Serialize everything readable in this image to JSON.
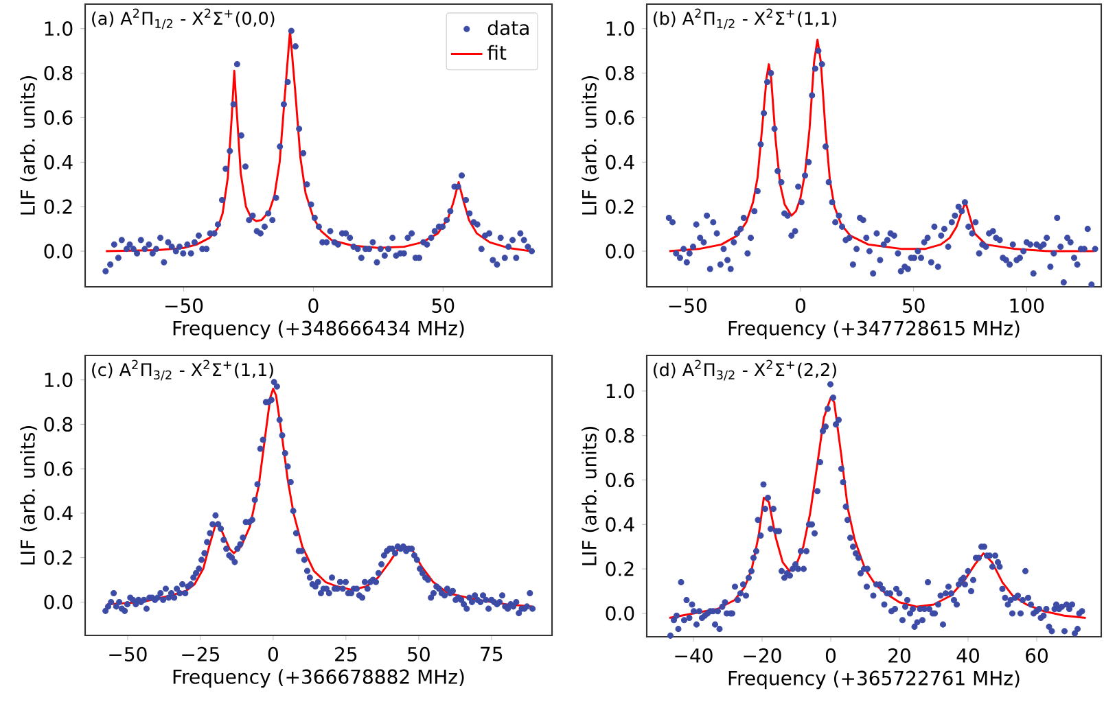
{
  "chart_data": [
    {
      "type": "scatter",
      "title": "(a) A$^{2}$Π$_{1/2}$ - X$^{2}$Σ$^{+}$(0,0)",
      "xlabel": "Frequency (+348666434 MHz)",
      "ylabel": "LIF (arb. units)",
      "xlim": [
        -88,
        92
      ],
      "ylim": [
        -0.16,
        1.11
      ],
      "xticks": [
        {
          "value": -50,
          "label": "−50"
        },
        0,
        50
      ],
      "yticks": [
        {
          "value": 0,
          "label": "0.0"
        },
        {
          "value": 0.2,
          "label": "0.2"
        },
        {
          "value": 0.4,
          "label": "0.4"
        },
        {
          "value": 0.6,
          "label": "0.6"
        },
        {
          "value": 0.8,
          "label": "0.8"
        },
        {
          "value": 1,
          "label": "1.0"
        }
      ],
      "legend": "top right",
      "series": [
        {
          "name": "data",
          "type": "scatter",
          "marker": "circle",
          "color": "#3c4ba5",
          "x": [
            -80.1,
            -78.3,
            -76.8,
            -75.2,
            -73.9,
            -72,
            -70.8,
            -69.4,
            -68,
            -66.5,
            -65,
            -63.4,
            -62,
            -60.6,
            -59,
            -57.6,
            -56,
            -54.6,
            -53,
            -51.6,
            -50.2,
            -48.6,
            -47.2,
            -45.8,
            -44.2,
            -42.8,
            -41.2,
            -39.8,
            -38.2,
            -36.8,
            -35.2,
            -33.8,
            -32.2,
            -30.8,
            -29.4,
            -27.8,
            -26.2,
            -24.8,
            -23.4,
            -21.8,
            -20.4,
            -18.8,
            -17.4,
            -15.8,
            -14.4,
            -12.9,
            -11.4,
            -9.9,
            -8.5,
            -6.9,
            -5.5,
            -3.9,
            -2.5,
            -0.9,
            0.5,
            2.1,
            3.5,
            5.1,
            6.5,
            8.1,
            9.5,
            11.1,
            12.5,
            14.1,
            15.5,
            17.1,
            18.5,
            20.1,
            21.5,
            22.9,
            24.5,
            25.9,
            27.5,
            28.9,
            30.5,
            31.9,
            33.5,
            34.9,
            36.4,
            37.9,
            39.4,
            40.8,
            42.4,
            43.8,
            45.4,
            46.8,
            48.4,
            49.8,
            51.4,
            52.8,
            54.4,
            55.8,
            57.2,
            58.8,
            60.2,
            61.8,
            63.2,
            64.8,
            66.2,
            67.8,
            69.2,
            70.8,
            72.2,
            73.8,
            75.2,
            76.8,
            78.2,
            79.8,
            81.2,
            82.7,
            84.2
          ],
          "values": [
            -0.09,
            -0.06,
            0.03,
            -0.03,
            0.05,
            0.01,
            0.03,
            0.01,
            -0.01,
            0.05,
            0.01,
            0.03,
            -0.01,
            0.01,
            0.06,
            -0.05,
            0.04,
            0.02,
            0.0,
            0.02,
            -0.01,
            0.03,
            -0.01,
            0.04,
            0.07,
            0.01,
            0.01,
            0.08,
            0.08,
            0.12,
            0.23,
            0.37,
            0.45,
            0.66,
            0.84,
            0.52,
            0.38,
            0.14,
            0.16,
            0.09,
            0.08,
            0.11,
            0.17,
            0.14,
            0.24,
            0.47,
            0.66,
            0.76,
            0.99,
            0.92,
            0.55,
            0.44,
            0.3,
            0.21,
            0.15,
            0.11,
            0.04,
            0.04,
            0.09,
            0.04,
            0.03,
            0.08,
            0.08,
            0.06,
            0.02,
            0.01,
            -0.03,
            0.01,
            0.01,
            0.04,
            -0.05,
            0.01,
            -0.02,
            0.01,
            0.06,
            -0.02,
            -0.01,
            -0.01,
            0.06,
            0.08,
            -0.03,
            -0.03,
            0.04,
            0.03,
            0.06,
            0.09,
            0.11,
            0.11,
            0.14,
            0.18,
            0.29,
            0.29,
            0.34,
            0.23,
            0.17,
            0.13,
            0.12,
            0.01,
            0.07,
            0.08,
            -0.04,
            -0.06,
            0.06,
            -0.03,
            0.02,
            0.05,
            -0.03,
            0.08,
            0.05,
            0.02,
            0.0
          ]
        },
        {
          "name": "fit",
          "type": "line",
          "color": "#ff0000",
          "x": [
            -80,
            -60,
            -50,
            -45,
            -40,
            -37,
            -35,
            -33,
            -31.5,
            -30.5,
            -29.5,
            -28,
            -26,
            -24,
            -22,
            -20,
            -17,
            -15,
            -13,
            -11,
            -9,
            -7,
            -5,
            -3,
            0,
            3,
            7,
            15,
            25,
            35,
            42,
            48,
            52,
            54,
            56,
            58,
            60,
            63,
            68,
            75,
            84
          ],
          "values": [
            0.0,
            0.005,
            0.015,
            0.03,
            0.06,
            0.1,
            0.17,
            0.33,
            0.6,
            0.81,
            0.62,
            0.35,
            0.2,
            0.15,
            0.135,
            0.14,
            0.18,
            0.25,
            0.4,
            0.7,
            0.99,
            0.72,
            0.42,
            0.26,
            0.15,
            0.09,
            0.05,
            0.025,
            0.015,
            0.02,
            0.04,
            0.08,
            0.15,
            0.22,
            0.31,
            0.22,
            0.14,
            0.08,
            0.04,
            0.015,
            0.0
          ]
        }
      ]
    },
    {
      "type": "scatter",
      "title": "(b) A$^{2}$Π$_{1/2}$ - X$^{2}$Σ$^{+}$(1,1)",
      "xlabel": "Frequency (+347728615 MHz)",
      "ylabel": "LIF (arb. units)",
      "xlim": [
        -68,
        133
      ],
      "ylim": [
        -0.16,
        1.11
      ],
      "xticks": [
        {
          "value": -50,
          "label": "−50"
        },
        0,
        50,
        100
      ],
      "yticks": [
        {
          "value": 0,
          "label": "0.0"
        },
        {
          "value": 0.2,
          "label": "0.2"
        },
        {
          "value": 0.4,
          "label": "0.4"
        },
        {
          "value": 0.6,
          "label": "0.6"
        },
        {
          "value": 0.8,
          "label": "0.8"
        },
        {
          "value": 1,
          "label": "1.0"
        }
      ],
      "series": [
        {
          "type": "scatter",
          "marker": "circle",
          "color": "#3c4ba5",
          "x": [
            -58.2,
            -56.6,
            -55,
            -53.3,
            -51.7,
            -50.3,
            -49.1,
            -47.5,
            -46.1,
            -44.4,
            -42.8,
            -41.4,
            -40,
            -38.6,
            -37,
            -35.4,
            -34,
            -32.3,
            -30.9,
            -29.5,
            -28.1,
            -26.5,
            -25.1,
            -23.4,
            -22,
            -20.4,
            -19,
            -17.6,
            -16.2,
            -14.7,
            -13.1,
            -11.5,
            -10.1,
            -8.5,
            -7.1,
            -5.7,
            -4,
            -2.4,
            -1,
            0.4,
            2,
            3.6,
            5.1,
            6.5,
            7.9,
            9.5,
            11.1,
            12.5,
            14,
            15.4,
            17,
            18.4,
            20,
            21.6,
            23.2,
            24.8,
            26.3,
            27.7,
            29.1,
            30.5,
            32.1,
            33.7,
            35.2,
            36.8,
            38.4,
            39.8,
            41.4,
            43.1,
            44.4,
            46.1,
            47.5,
            48.9,
            50.3,
            51.9,
            53.3,
            54.7,
            56.2,
            57.8,
            59.2,
            60.8,
            62.2,
            63.6,
            65.3,
            66.9,
            68.3,
            69.9,
            71.3,
            72.7,
            74.3,
            75.9,
            77.4,
            79,
            80.4,
            82,
            83.4,
            85.1,
            86.5,
            88.1,
            89.5,
            90.9,
            92.5,
            93.9,
            95.6,
            97,
            98.6,
            100,
            101.6,
            103,
            104.4,
            106.1,
            107.5,
            108.9,
            110.5,
            112,
            113.5,
            115,
            116.4,
            118,
            119.4,
            121,
            122.4,
            124,
            125.5,
            127,
            128.7,
            130.3
          ],
          "values": [
            0.15,
            0.13,
            -0.01,
            -0.03,
            0.01,
            -0.05,
            -0.01,
            0.02,
            0.12,
            0.06,
            0.04,
            0.16,
            -0.08,
            0.13,
            0.08,
            -0.06,
            0.01,
            -0.04,
            -0.08,
            0.04,
            0.08,
            0.1,
            0.15,
            -0.01,
            0.06,
            0.18,
            0.27,
            0.48,
            0.62,
            0.76,
            0.8,
            0.55,
            0.36,
            0.31,
            0.17,
            0.16,
            0.07,
            0.09,
            0.29,
            0.22,
            0.34,
            0.4,
            0.7,
            0.82,
            0.9,
            0.84,
            0.47,
            0.31,
            0.22,
            0.13,
            0.16,
            0.11,
            0.05,
            0.06,
            -0.06,
            0.01,
            0.15,
            0.14,
            0.06,
            0.0,
            -0.1,
            0.08,
            -0.04,
            0.03,
            0.05,
            0.08,
            0.07,
            -0.01,
            -0.09,
            -0.07,
            -0.08,
            -0.03,
            -0.03,
            0.0,
            -0.03,
            0.04,
            0.06,
            -0.05,
            0.11,
            -0.07,
            0.07,
            0.1,
            0.02,
            0.13,
            0.16,
            0.2,
            0.18,
            0.22,
            0.11,
            0.08,
            0.13,
            -0.01,
            0.03,
            0.02,
            0.08,
            0.09,
            0.06,
            0.05,
            -0.03,
            -0.04,
            -0.06,
            0.03,
            -0.04,
            -0.03,
            0.0,
            0.04,
            0.03,
            -0.1,
            0.03,
            0.02,
            0.03,
            0.06,
            -0.07,
            -0.01,
            0.15,
            0.02,
            -0.14,
            0.06,
            0.04,
            -0.03,
            -0.06,
            0.01,
            0.01,
            0.1,
            -0.15,
            0.01
          ]
        },
        {
          "type": "line",
          "color": "#ff0000",
          "x": [
            -58,
            -45,
            -35,
            -28,
            -24,
            -21,
            -19,
            -17,
            -15,
            -14,
            -13,
            -11,
            -9,
            -7,
            -4,
            -2,
            0,
            2,
            4,
            6,
            7.5,
            9,
            11,
            13,
            15,
            18,
            22,
            30,
            45,
            55,
            62,
            66,
            69,
            71,
            73,
            75,
            77,
            82,
            95,
            110,
            130
          ],
          "values": [
            0.0,
            0.01,
            0.03,
            0.07,
            0.13,
            0.22,
            0.33,
            0.55,
            0.78,
            0.84,
            0.78,
            0.5,
            0.3,
            0.21,
            0.16,
            0.18,
            0.24,
            0.35,
            0.55,
            0.85,
            0.95,
            0.85,
            0.55,
            0.32,
            0.2,
            0.12,
            0.07,
            0.03,
            0.01,
            0.01,
            0.03,
            0.06,
            0.11,
            0.17,
            0.22,
            0.15,
            0.08,
            0.03,
            0.01,
            0.0,
            0.0
          ]
        }
      ]
    },
    {
      "type": "scatter",
      "title": "(c) A$^{2}$Π$_{3/2}$ - X$^{2}$Σ$^{+}$(1,1)",
      "xlabel": "Frequency (+366678882 MHz)",
      "ylabel": "LIF (arb. units)",
      "xlim": [
        -64.6,
        95.8
      ],
      "ylim": [
        -0.15,
        1.11
      ],
      "xticks": [
        {
          "value": -50,
          "label": "−50"
        },
        {
          "value": -25,
          "label": "−25"
        },
        0,
        25,
        50,
        75
      ],
      "yticks": [
        {
          "value": 0,
          "label": "0.0"
        },
        {
          "value": 0.2,
          "label": "0.2"
        },
        {
          "value": 0.4,
          "label": "0.4"
        },
        {
          "value": 0.6,
          "label": "0.6"
        },
        {
          "value": 0.8,
          "label": "0.8"
        },
        {
          "value": 1,
          "label": "1.0"
        }
      ],
      "series": [
        {
          "type": "scatter",
          "marker": "circle",
          "color": "#3c4ba5",
          "x": [
            -57.6,
            -56.7,
            -55.7,
            -54.8,
            -53.9,
            -52.9,
            -52,
            -51,
            -50.1,
            -49.1,
            -48.2,
            -47.2,
            -46.3,
            -45.4,
            -44.4,
            -43.5,
            -42.5,
            -41.6,
            -40.6,
            -39.7,
            -38.7,
            -37.8,
            -36.9,
            -35.9,
            -35,
            -34,
            -33.1,
            -32.1,
            -31.2,
            -30.2,
            -29.3,
            -28.3,
            -27.4,
            -26.5,
            -25.5,
            -24.6,
            -23.6,
            -22.7,
            -21.7,
            -20.8,
            -19.8,
            -18.9,
            -18,
            -17,
            -16.1,
            -15.1,
            -14.2,
            -13.2,
            -12.3,
            -11.3,
            -10.4,
            -9.4,
            -8.2,
            -7.2,
            -6.3,
            -5.4,
            -4.4,
            -3.5,
            -2.5,
            -1.6,
            -0.6,
            0.3,
            1.3,
            2.2,
            3.1,
            4.1,
            5,
            6,
            6.9,
            7.9,
            8.8,
            9.8,
            10.7,
            11.7,
            12.6,
            13.5,
            14.5,
            15.4,
            16.4,
            17.3,
            18.3,
            19.2,
            20.2,
            21.1,
            22,
            23,
            23.9,
            24.9,
            25.8,
            26.8,
            27.7,
            28.7,
            29.6,
            30.6,
            31.5,
            32.4,
            33.4,
            34.3,
            35.3,
            36.2,
            37.2,
            38.1,
            39.1,
            40,
            40.9,
            41.9,
            42.8,
            43.8,
            44.7,
            45.7,
            46.6,
            47.6,
            48.5,
            49.4,
            50.4,
            51.3,
            52.3,
            53.2,
            54.2,
            55.1,
            56.1,
            57,
            57.9,
            58.9,
            59.8,
            60.8,
            61.7,
            62.7,
            63.6,
            64.6,
            65.5,
            66.5,
            67.4,
            68.3,
            69.3,
            70.2,
            71.2,
            72.1,
            73.1,
            74,
            75,
            75.9,
            76.9,
            77.8,
            78.7,
            79.7,
            80.6,
            81.6,
            82.5,
            83.5,
            84.4,
            85.4,
            86.3,
            87.2,
            88.2,
            89.1
          ],
          "values": [
            -0.04,
            -0.02,
            0.0,
            0.04,
            -0.02,
            0.0,
            -0.03,
            -0.04,
            -0.01,
            0.02,
            0.01,
            -0.01,
            0.01,
            0.0,
            0.01,
            -0.03,
            0.02,
            0.02,
            0.01,
            0.02,
            0.04,
            0.01,
            0.06,
            0.02,
            0.04,
            0.02,
            0.06,
            0.04,
            0.08,
            0.04,
            0.07,
            0.08,
            0.11,
            0.13,
            0.15,
            0.19,
            0.22,
            0.27,
            0.31,
            0.35,
            0.39,
            0.35,
            0.33,
            0.28,
            0.24,
            0.21,
            0.2,
            0.18,
            0.24,
            0.26,
            0.29,
            0.36,
            0.36,
            0.37,
            0.46,
            0.53,
            0.69,
            0.73,
            0.9,
            0.9,
            0.91,
            0.99,
            0.97,
            0.82,
            0.75,
            0.67,
            0.61,
            0.54,
            0.41,
            0.31,
            0.23,
            0.23,
            0.19,
            0.14,
            0.11,
            0.08,
            0.07,
            0.09,
            0.04,
            0.06,
            0.06,
            0.04,
            0.11,
            0.06,
            0.06,
            0.09,
            0.06,
            0.09,
            0.04,
            0.04,
            0.06,
            0.06,
            0.03,
            0.02,
            0.09,
            0.06,
            0.09,
            0.1,
            0.09,
            0.13,
            0.17,
            0.21,
            0.23,
            0.24,
            0.24,
            0.22,
            0.25,
            0.24,
            0.25,
            0.23,
            0.24,
            0.24,
            0.21,
            0.19,
            0.15,
            0.13,
            0.11,
            0.1,
            0.02,
            0.04,
            0.07,
            0.06,
            0.04,
            0.03,
            0.06,
            0.04,
            0.05,
            0.01,
            0.02,
            0.01,
            -0.01,
            -0.03,
            0.02,
            0.0,
            0.03,
            0.01,
            0.0,
            0.03,
            0.01,
            -0.03,
            0.01,
            0.0,
            -0.01,
            0.0,
            0.03,
            -0.02,
            -0.03,
            -0.01,
            -0.02,
            0.0,
            -0.05,
            -0.03,
            -0.03,
            -0.02,
            0.04,
            -0.03
          ]
        },
        {
          "type": "line",
          "color": "#ff0000",
          "x": [
            -57,
            -45,
            -35,
            -30,
            -27,
            -24,
            -22,
            -20,
            -19,
            -17,
            -15,
            -13.5,
            -11,
            -8,
            -5,
            -3,
            -1,
            0,
            1,
            3,
            5,
            7,
            10,
            14,
            18,
            22,
            27,
            32,
            36,
            40,
            43,
            45.5,
            48,
            51,
            55,
            60,
            70,
            80,
            89
          ],
          "values": [
            -0.01,
            0.0,
            0.03,
            0.05,
            0.08,
            0.15,
            0.25,
            0.34,
            0.36,
            0.3,
            0.24,
            0.22,
            0.25,
            0.34,
            0.52,
            0.72,
            0.92,
            0.96,
            0.93,
            0.75,
            0.55,
            0.4,
            0.25,
            0.14,
            0.09,
            0.07,
            0.055,
            0.07,
            0.11,
            0.18,
            0.24,
            0.25,
            0.23,
            0.16,
            0.09,
            0.04,
            0.01,
            -0.01,
            -0.02
          ]
        }
      ]
    },
    {
      "type": "scatter",
      "title": "(d) A$^{2}$Π$_{3/2}$ - X$^{2}$Σ$^{+}$(2,2)",
      "xlabel": "Frequency (+365722761 MHz)",
      "ylabel": "LIF (arb. units)",
      "xlim": [
        -53.6,
        78.8
      ],
      "ylim": [
        -0.105,
        1.16
      ],
      "xticks": [
        {
          "value": -40,
          "label": "−40"
        },
        {
          "value": -20,
          "label": "−20"
        },
        0,
        20,
        40,
        60
      ],
      "yticks": [
        {
          "value": 0,
          "label": "0.0"
        },
        {
          "value": 0.2,
          "label": "0.2"
        },
        {
          "value": 0.4,
          "label": "0.4"
        },
        {
          "value": 0.6,
          "label": "0.6"
        },
        {
          "value": 0.8,
          "label": "0.8"
        },
        {
          "value": 1,
          "label": "1.0"
        }
      ],
      "series": [
        {
          "type": "scatter",
          "marker": "circle",
          "color": "#3c4ba5",
          "x": [
            -46.7,
            -45.7,
            -44.9,
            -44.4,
            -43.6,
            -42.7,
            -42,
            -41.2,
            -40.4,
            -39.9,
            -39.1,
            -38.3,
            -37.5,
            -36.7,
            -35.9,
            -35.1,
            -34.3,
            -33.7,
            -32.9,
            -32.4,
            -31.6,
            -30.8,
            -30.3,
            -29.2,
            -28.7,
            -27.9,
            -27.1,
            -26.3,
            -25.5,
            -24.7,
            -23.9,
            -23.1,
            -22.5,
            -21.7,
            -21.2,
            -20.4,
            -19.6,
            -19.1,
            -18.3,
            -17.5,
            -16.7,
            -15.9,
            -15.1,
            -14.3,
            -13.5,
            -12.7,
            -11.9,
            -11.1,
            -10.3,
            -9.5,
            -8.7,
            -7.9,
            -7.1,
            -6.3,
            -5.5,
            -4.7,
            -3.9,
            -3.1,
            -2.3,
            -1.5,
            -0.9,
            -0.1,
            0.7,
            1.5,
            2.3,
            3.1,
            3.6,
            4.4,
            4.9,
            5.7,
            6.5,
            7.3,
            8.1,
            8.7,
            9.7,
            10.5,
            10.7,
            12.4,
            13.3,
            14.3,
            15.1,
            15.6,
            16.4,
            17.3,
            17.7,
            18.7,
            19.1,
            20,
            20.9,
            21.7,
            22.3,
            23.1,
            23.9,
            24.4,
            25.2,
            26,
            26.7,
            27.3,
            28.3,
            28.7,
            29.7,
            30.3,
            31.3,
            32,
            32.7,
            33.5,
            34.3,
            35.1,
            35.9,
            36.7,
            37.3,
            38,
            38.7,
            39.1,
            40,
            40.9,
            41.5,
            42.3,
            43.1,
            43.9,
            44.7,
            45.5,
            46.3,
            47.1,
            47.9,
            48.7,
            49.2,
            50,
            50.8,
            51.6,
            52.4,
            52.9,
            53.7,
            54.5,
            55.3,
            55.9,
            56.7,
            57.5,
            58.3,
            59.1,
            59.9,
            60.7,
            61.2,
            62,
            62.8,
            63.6,
            64.4,
            65.2,
            65.7,
            66.5,
            67.3,
            68.1,
            68.7,
            69.5,
            70.3,
            71.1,
            71.9,
            72.4,
            73.2
          ],
          "values": [
            -0.1,
            -0.03,
            -0.01,
            -0.07,
            0.14,
            -0.03,
            0.06,
            -0.02,
            0.04,
            0.01,
            -0.05,
            0.01,
            -0.02,
            -0.01,
            0.0,
            0.01,
            0.01,
            -0.05,
            0.01,
            -0.07,
            0.03,
            0.05,
            0.0,
            0.0,
            0.0,
            0.12,
            0.06,
            0.09,
            0.13,
            0.08,
            0.16,
            0.19,
            0.25,
            0.28,
            0.42,
            0.35,
            0.58,
            0.47,
            0.52,
            0.38,
            0.47,
            0.37,
            0.37,
            0.19,
            0.16,
            0.18,
            0.17,
            0.2,
            0.22,
            0.2,
            0.28,
            0.2,
            0.28,
            0.4,
            0.4,
            0.36,
            0.55,
            0.68,
            0.82,
            0.84,
            0.92,
            1.03,
            0.97,
            0.85,
            0.87,
            0.65,
            0.59,
            0.48,
            0.42,
            0.34,
            0.3,
            0.27,
            0.25,
            0.18,
            0.2,
            0.12,
            0.2,
            0.08,
            0.13,
            0.13,
            0.11,
            0.04,
            0.09,
            0.09,
            0.01,
            0.02,
            0.11,
            0.09,
            -0.03,
            0.03,
            0.06,
            0.0,
            0.02,
            -0.06,
            -0.04,
            0.02,
            -0.03,
            0.02,
            0.14,
            0.02,
            0.0,
            0.0,
            0.04,
            0.08,
            -0.05,
            0.09,
            0.12,
            0.09,
            0.06,
            0.04,
            0.13,
            0.15,
            0.16,
            0.13,
            0.19,
            0.1,
            0.15,
            0.25,
            0.25,
            0.3,
            0.3,
            0.26,
            0.26,
            0.21,
            0.26,
            0.23,
            0.21,
            0.11,
            0.07,
            0.04,
            0.06,
            0.0,
            0.07,
            0.08,
            0.0,
            0.06,
            0.19,
            0.07,
            0.04,
            0.0,
            0.01,
            0.02,
            -0.02,
            -0.01,
            0.02,
            -0.06,
            -0.08,
            0.02,
            0.04,
            0.02,
            0.03,
            -0.08,
            0.04,
            0.02,
            0.04,
            -0.09,
            -0.07,
            0.0,
            0.01
          ]
        },
        {
          "type": "line",
          "color": "#ff0000",
          "x": [
            -47,
            -40,
            -33,
            -28,
            -25,
            -23,
            -21,
            -19.5,
            -18,
            -16,
            -14,
            -12,
            -10,
            -8,
            -6,
            -4,
            -2,
            0,
            1,
            3,
            5,
            7,
            10,
            13,
            16,
            20,
            25,
            30,
            35,
            39,
            42,
            44.5,
            47,
            50,
            53,
            57,
            62,
            68,
            74.3
          ],
          "values": [
            -0.02,
            0.0,
            0.02,
            0.06,
            0.12,
            0.2,
            0.35,
            0.52,
            0.5,
            0.34,
            0.23,
            0.19,
            0.22,
            0.3,
            0.45,
            0.66,
            0.88,
            0.97,
            0.95,
            0.72,
            0.47,
            0.33,
            0.2,
            0.13,
            0.09,
            0.05,
            0.03,
            0.04,
            0.08,
            0.15,
            0.22,
            0.27,
            0.23,
            0.14,
            0.08,
            0.04,
            0.01,
            -0.01,
            -0.02
          ]
        }
      ]
    }
  ]
}
